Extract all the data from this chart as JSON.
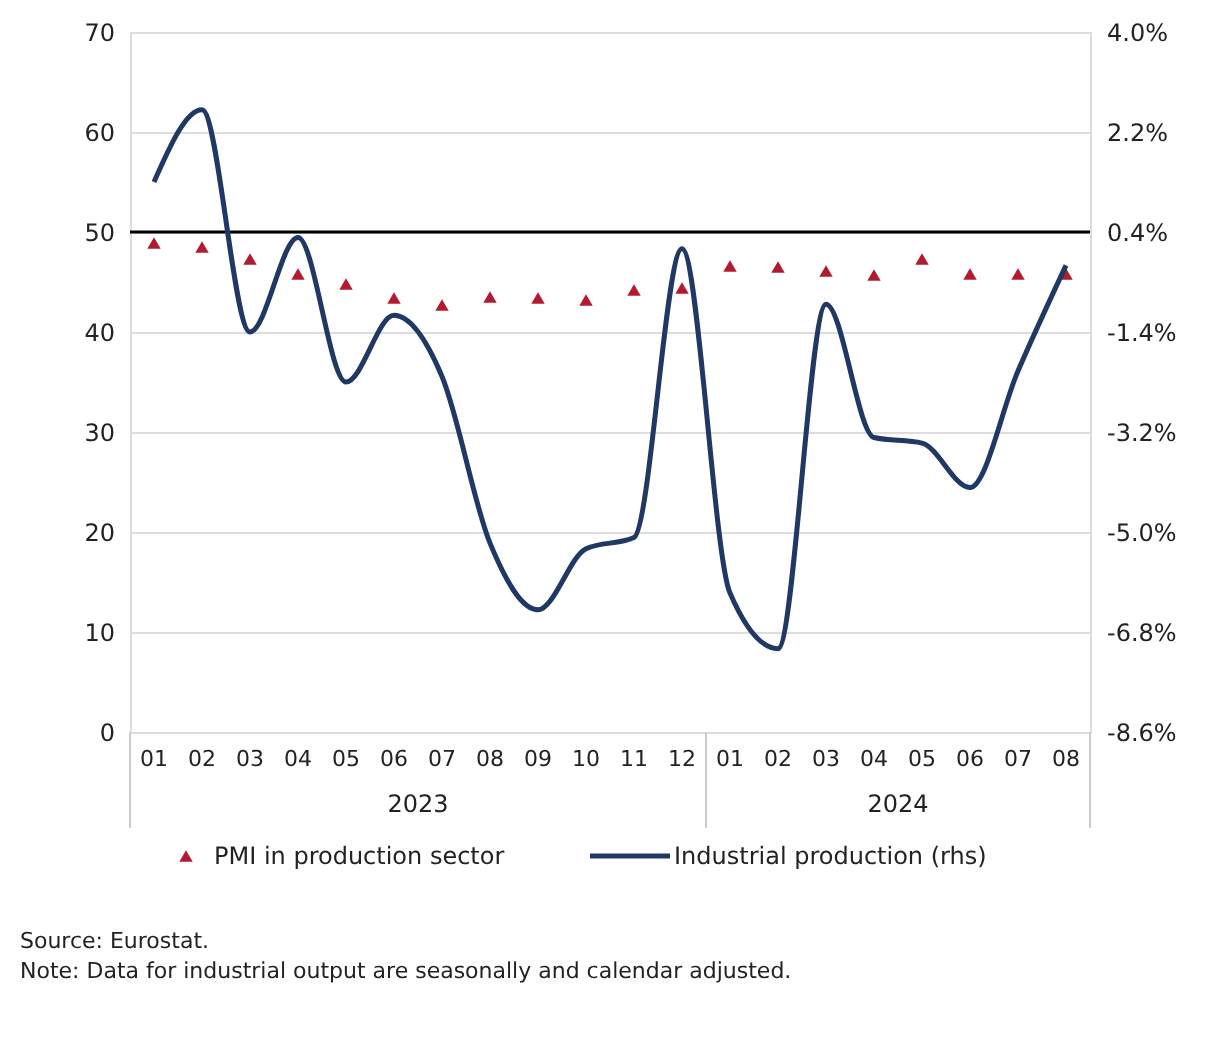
{
  "chart_data": {
    "type": "line",
    "categories": [
      "01",
      "02",
      "03",
      "04",
      "05",
      "06",
      "07",
      "08",
      "09",
      "10",
      "11",
      "12",
      "01",
      "02",
      "03",
      "04",
      "05",
      "06",
      "07",
      "08"
    ],
    "series": [
      {
        "name": "PMI in production sector",
        "type": "scatter",
        "marker": "triangle",
        "color": "#b01c2e",
        "values": [
          48.9,
          48.5,
          47.3,
          45.8,
          44.8,
          43.4,
          42.7,
          43.5,
          43.4,
          43.2,
          44.2,
          44.4,
          46.6,
          46.5,
          46.1,
          45.7,
          47.3,
          45.8,
          45.8,
          45.8
        ]
      },
      {
        "name": "Industrial production (rhs)",
        "axis": "y2",
        "color": "#1f3864",
        "values": [
          1.3,
          2.6,
          -1.4,
          0.3,
          -2.3,
          -1.1,
          -2.2,
          -5.2,
          -6.4,
          -5.3,
          -5.1,
          0.1,
          -6.1,
          -7.1,
          -0.9,
          -3.3,
          -3.4,
          -4.2,
          -2.1,
          -0.2
        ]
      }
    ],
    "ylim": [
      0,
      70
    ],
    "yticks": [
      0,
      10,
      20,
      30,
      40,
      50,
      60,
      70
    ],
    "y2lim": [
      -8.6,
      4.0
    ],
    "y2ticks": [
      {
        "value": -8.6,
        "label": "-8.6%"
      },
      {
        "value": -6.8,
        "label": "-6.8%"
      },
      {
        "value": -5.0,
        "label": "-5.0%"
      },
      {
        "value": -3.2,
        "label": "-3.2%"
      },
      {
        "value": -1.4,
        "label": "-1.4%"
      },
      {
        "value": 0.4,
        "label": "0.4%"
      },
      {
        "value": 2.2,
        "label": "2.2%"
      },
      {
        "value": 4.0,
        "label": "4.0%"
      }
    ],
    "ref_lines": [
      {
        "axis": "y",
        "value": 50,
        "color": "#000000"
      }
    ],
    "grid": "y",
    "legend": "bottom",
    "annotations": [
      "2023",
      "2024",
      "Source: Eurostat.",
      "Note: Data for industrial output are seasonally and calendar adjusted."
    ]
  }
}
